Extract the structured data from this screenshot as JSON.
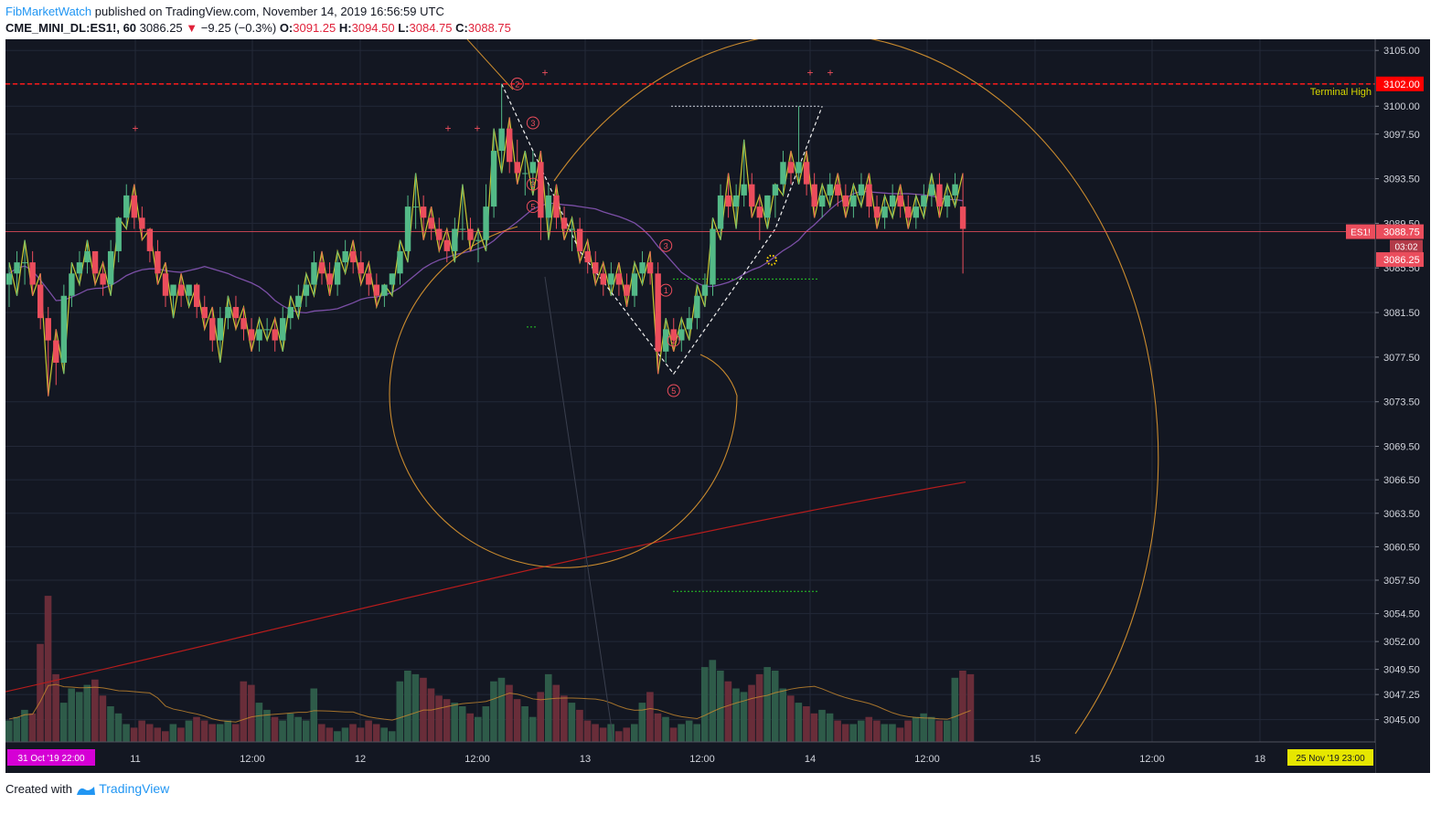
{
  "header": {
    "author": "FibMarketWatch",
    "published_text": "published on TradingView.com, November 14, 2019 16:56:59 UTC",
    "symbol": "CME_MINI_DL:ES1!, 60",
    "last": "3086.25",
    "change": "−9.25 (−0.3%)",
    "o_label": "O:",
    "o_value": "3091.25",
    "h_label": "H:",
    "h_value": "3094.50",
    "l_label": "L:",
    "l_value": "3084.75",
    "c_label": "C:",
    "c_value": "3088.75"
  },
  "footer": {
    "created_with": "Created with",
    "brand": "TradingView"
  },
  "colors": {
    "background": "#131722",
    "up": "#53b987",
    "down": "#eb4d5c",
    "zigzag": "#c8c832",
    "fib": "#c98a2e",
    "ma_purple": "#7b4fa6",
    "ma_red": "#b71c1c",
    "resistance": "#ff1a1a",
    "price_label": "#eb4d5c"
  },
  "chart_data": {
    "type": "candlestick",
    "price_axis": {
      "min": 3043,
      "max": 3106,
      "ticks": [
        "3105.00",
        "3102.00",
        "3100.00",
        "3097.50",
        "3093.50",
        "3089.50",
        "3085.50",
        "3081.50",
        "3077.50",
        "3073.50",
        "3069.50",
        "3066.50",
        "3063.50",
        "3060.50",
        "3057.50",
        "3054.50",
        "3052.00",
        "3049.50",
        "3047.25",
        "3045.00"
      ]
    },
    "time_axis": {
      "ticks": [
        "11",
        "12:00",
        "12",
        "12:00",
        "13",
        "12:00",
        "14",
        "12:00",
        "15",
        "12:00",
        "18"
      ],
      "start_label": "31 Oct '19  22:00",
      "end_label": "25 Nov '19  23:00"
    },
    "labels": {
      "resistance_price": "3102.00",
      "resistance_name": "Terminal High",
      "symbol_tag": "ES1!",
      "symbol_price": "3088.75",
      "countdown": "03:02",
      "last_price": "3086.25"
    },
    "resistance_level": 3102,
    "candles": [
      [
        3084,
        3086,
        3082,
        3085
      ],
      [
        3085,
        3087,
        3083,
        3086
      ],
      [
        3086,
        3088,
        3084,
        3086
      ],
      [
        3086,
        3087,
        3083,
        3084
      ],
      [
        3084,
        3085,
        3080,
        3081
      ],
      [
        3081,
        3082,
        3074,
        3079
      ],
      [
        3079,
        3080,
        3075,
        3077
      ],
      [
        3077,
        3084,
        3076,
        3083
      ],
      [
        3083,
        3086,
        3082,
        3085
      ],
      [
        3085,
        3087,
        3084,
        3086
      ],
      [
        3086,
        3088,
        3085,
        3087
      ],
      [
        3087,
        3087,
        3084,
        3085
      ],
      [
        3085,
        3086,
        3083,
        3084
      ],
      [
        3084,
        3088,
        3083,
        3087
      ],
      [
        3087,
        3090,
        3086,
        3090
      ],
      [
        3090,
        3093,
        3089,
        3092
      ],
      [
        3092,
        3093,
        3089,
        3090
      ],
      [
        3090,
        3091,
        3088,
        3089
      ],
      [
        3089,
        3089,
        3086,
        3087
      ],
      [
        3087,
        3088,
        3084,
        3085
      ],
      [
        3085,
        3086,
        3082,
        3083
      ],
      [
        3083,
        3084,
        3081,
        3084
      ],
      [
        3084,
        3085,
        3082,
        3083
      ],
      [
        3083,
        3084,
        3082,
        3084
      ],
      [
        3084,
        3084,
        3081,
        3082
      ],
      [
        3082,
        3083,
        3080,
        3081
      ],
      [
        3081,
        3082,
        3078,
        3079
      ],
      [
        3079,
        3082,
        3077,
        3081
      ],
      [
        3081,
        3083,
        3080,
        3082
      ],
      [
        3082,
        3083,
        3080,
        3081
      ],
      [
        3081,
        3082,
        3079,
        3080
      ],
      [
        3080,
        3081,
        3078,
        3079
      ],
      [
        3079,
        3081,
        3078,
        3080
      ],
      [
        3080,
        3081,
        3079,
        3080
      ],
      [
        3080,
        3081,
        3078,
        3079
      ],
      [
        3079,
        3082,
        3078,
        3081
      ],
      [
        3081,
        3083,
        3080,
        3082
      ],
      [
        3082,
        3084,
        3081,
        3083
      ],
      [
        3083,
        3085,
        3082,
        3084
      ],
      [
        3084,
        3087,
        3083,
        3086
      ],
      [
        3086,
        3087,
        3084,
        3085
      ],
      [
        3085,
        3086,
        3083,
        3084
      ],
      [
        3084,
        3087,
        3083,
        3086
      ],
      [
        3086,
        3088,
        3085,
        3087
      ],
      [
        3087,
        3088,
        3085,
        3086
      ],
      [
        3086,
        3087,
        3084,
        3085
      ],
      [
        3085,
        3086,
        3083,
        3084
      ],
      [
        3084,
        3085,
        3082,
        3083
      ],
      [
        3083,
        3084,
        3082,
        3084
      ],
      [
        3084,
        3085,
        3083,
        3085
      ],
      [
        3085,
        3088,
        3084,
        3087
      ],
      [
        3087,
        3092,
        3086,
        3091
      ],
      [
        3091,
        3094,
        3089,
        3091
      ],
      [
        3091,
        3092,
        3088,
        3090
      ],
      [
        3090,
        3091,
        3088,
        3089
      ],
      [
        3089,
        3090,
        3087,
        3088
      ],
      [
        3088,
        3089,
        3086,
        3087
      ],
      [
        3087,
        3090,
        3086,
        3089
      ],
      [
        3089,
        3093,
        3088,
        3089
      ],
      [
        3089,
        3090,
        3087,
        3088
      ],
      [
        3088,
        3089,
        3086,
        3088
      ],
      [
        3088,
        3093,
        3087,
        3091
      ],
      [
        3091,
        3098,
        3090,
        3096
      ],
      [
        3096,
        3102,
        3094,
        3098
      ],
      [
        3098,
        3099,
        3094,
        3095
      ],
      [
        3095,
        3097,
        3093,
        3094
      ],
      [
        3094,
        3096,
        3092,
        3094
      ],
      [
        3094,
        3096,
        3092,
        3095
      ],
      [
        3095,
        3096,
        3088,
        3090
      ],
      [
        3090,
        3093,
        3088,
        3092
      ],
      [
        3092,
        3093,
        3089,
        3090
      ],
      [
        3090,
        3091,
        3088,
        3089
      ],
      [
        3089,
        3090,
        3087,
        3089
      ],
      [
        3089,
        3090,
        3086,
        3087
      ],
      [
        3087,
        3088,
        3085,
        3086
      ],
      [
        3086,
        3087,
        3084,
        3085
      ],
      [
        3085,
        3086,
        3083,
        3084
      ],
      [
        3084,
        3086,
        3083,
        3085
      ],
      [
        3085,
        3086,
        3083,
        3084
      ],
      [
        3084,
        3085,
        3082,
        3083
      ],
      [
        3083,
        3086,
        3082,
        3085
      ],
      [
        3085,
        3087,
        3084,
        3086
      ],
      [
        3086,
        3087,
        3084,
        3085
      ],
      [
        3085,
        3086,
        3076,
        3078
      ],
      [
        3078,
        3081,
        3077,
        3080
      ],
      [
        3080,
        3081,
        3078,
        3079
      ],
      [
        3079,
        3081,
        3078,
        3080
      ],
      [
        3080,
        3082,
        3079,
        3081
      ],
      [
        3081,
        3084,
        3080,
        3083
      ],
      [
        3083,
        3085,
        3082,
        3084
      ],
      [
        3084,
        3090,
        3083,
        3089
      ],
      [
        3089,
        3093,
        3088,
        3092
      ],
      [
        3092,
        3094,
        3090,
        3091
      ],
      [
        3091,
        3093,
        3089,
        3092
      ],
      [
        3092,
        3097,
        3091,
        3093
      ],
      [
        3093,
        3094,
        3090,
        3091
      ],
      [
        3091,
        3092,
        3088,
        3090
      ],
      [
        3090,
        3092,
        3089,
        3092
      ],
      [
        3092,
        3093,
        3090,
        3093
      ],
      [
        3093,
        3096,
        3092,
        3095
      ],
      [
        3095,
        3096,
        3093,
        3094
      ],
      [
        3094,
        3100,
        3093,
        3095
      ],
      [
        3095,
        3096,
        3092,
        3093
      ],
      [
        3093,
        3094,
        3090,
        3091
      ],
      [
        3091,
        3093,
        3090,
        3092
      ],
      [
        3092,
        3094,
        3091,
        3093
      ],
      [
        3093,
        3094,
        3091,
        3092
      ],
      [
        3092,
        3093,
        3090,
        3091
      ],
      [
        3091,
        3093,
        3090,
        3092
      ],
      [
        3092,
        3094,
        3091,
        3093
      ],
      [
        3093,
        3094,
        3090,
        3091
      ],
      [
        3091,
        3092,
        3089,
        3090
      ],
      [
        3090,
        3092,
        3089,
        3091
      ],
      [
        3091,
        3093,
        3090,
        3092
      ],
      [
        3092,
        3093,
        3090,
        3091
      ],
      [
        3091,
        3092,
        3089,
        3090
      ],
      [
        3090,
        3092,
        3089,
        3091
      ],
      [
        3091,
        3093,
        3090,
        3092
      ],
      [
        3092,
        3094,
        3091,
        3093
      ],
      [
        3093,
        3094,
        3090,
        3091
      ],
      [
        3091,
        3093,
        3090,
        3092
      ],
      [
        3092,
        3094,
        3091,
        3093
      ],
      [
        3091,
        3094,
        3085,
        3089
      ]
    ],
    "volume_axis": {
      "max": 100
    },
    "volume": [
      12,
      14,
      18,
      16,
      55,
      82,
      38,
      22,
      30,
      28,
      32,
      35,
      26,
      20,
      16,
      10,
      8,
      12,
      10,
      8,
      6,
      10,
      8,
      12,
      14,
      12,
      10,
      10,
      12,
      10,
      34,
      32,
      22,
      18,
      14,
      12,
      16,
      14,
      12,
      30,
      10,
      8,
      6,
      8,
      10,
      8,
      12,
      10,
      8,
      6,
      34,
      40,
      38,
      36,
      30,
      26,
      24,
      22,
      20,
      16,
      14,
      20,
      34,
      36,
      32,
      24,
      20,
      14,
      28,
      38,
      32,
      26,
      22,
      18,
      12,
      10,
      8,
      10,
      6,
      8,
      10,
      22,
      28,
      16,
      14,
      8,
      10,
      12,
      10,
      42,
      46,
      40,
      34,
      30,
      28,
      32,
      38,
      42,
      40,
      30,
      26,
      22,
      20,
      16,
      18,
      16,
      12,
      10,
      10,
      12,
      14,
      12,
      10,
      10,
      8,
      12,
      14,
      16,
      14,
      12,
      12,
      36,
      40,
      38
    ]
  }
}
